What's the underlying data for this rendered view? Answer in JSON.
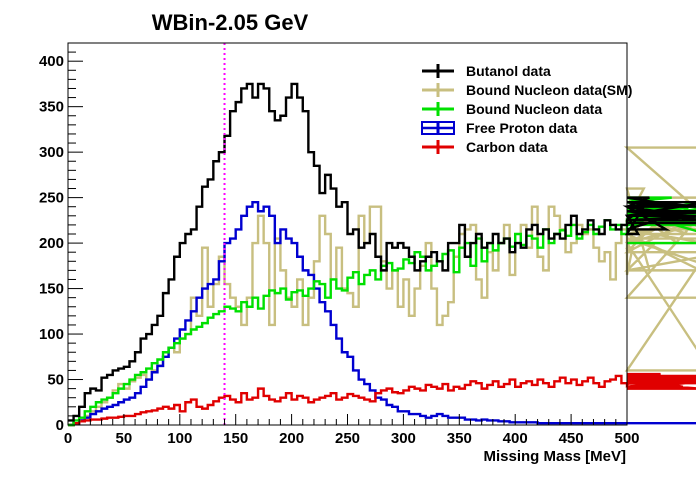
{
  "chart_data": {
    "type": "line",
    "title": "WBin-2.05 GeV",
    "xlabel": "Missing Mass [MeV]",
    "ylabel": "",
    "xlim": [
      0,
      500
    ],
    "ylim": [
      0,
      420
    ],
    "xticks": [
      0,
      50,
      100,
      150,
      200,
      250,
      300,
      350,
      400,
      450,
      500
    ],
    "yticks": [
      0,
      50,
      100,
      150,
      200,
      250,
      300,
      350,
      400
    ],
    "grid": false,
    "legend_position": "top-right",
    "bin_width": 5,
    "x_start": 0,
    "vertical_marker": {
      "x": 140,
      "color": "#ff00ff",
      "style": "dotted"
    },
    "series": [
      {
        "name": "Butanol data",
        "color": "#000000",
        "values": [
          5,
          10,
          20,
          35,
          40,
          38,
          52,
          55,
          60,
          62,
          64,
          70,
          80,
          95,
          100,
          110,
          120,
          145,
          160,
          185,
          200,
          210,
          215,
          240,
          262,
          270,
          290,
          300,
          318,
          345,
          355,
          370,
          375,
          360,
          375,
          370,
          345,
          335,
          340,
          360,
          375,
          360,
          345,
          300,
          285,
          255,
          275,
          260,
          240,
          245,
          210,
          215,
          195,
          200,
          210,
          185,
          170,
          200,
          195,
          200,
          195,
          185,
          170,
          180,
          185,
          190,
          180,
          170,
          200,
          200,
          220,
          185,
          200,
          210,
          195,
          200,
          210,
          200,
          205,
          190,
          200,
          195,
          215,
          220,
          210,
          215,
          205,
          210,
          205,
          220,
          230,
          210,
          215,
          225,
          215,
          210,
          225,
          220,
          215,
          220,
          225,
          230,
          210,
          240,
          250,
          245,
          240,
          215,
          230,
          240,
          245,
          240,
          225,
          230,
          245,
          240,
          225,
          230,
          235,
          235,
          222
        ]
      },
      {
        "name": "Bound Nucleon data(SM)",
        "color": "#c8bf80",
        "values": [
          0,
          2,
          5,
          10,
          15,
          20,
          25,
          30,
          38,
          45,
          40,
          48,
          52,
          55,
          50,
          60,
          65,
          75,
          85,
          80,
          95,
          100,
          140,
          120,
          195,
          130,
          155,
          185,
          155,
          140,
          130,
          110,
          140,
          200,
          230,
          200,
          110,
          205,
          170,
          140,
          130,
          160,
          110,
          140,
          180,
          230,
          210,
          160,
          195,
          150,
          145,
          130,
          230,
          200,
          240,
          240,
          180,
          150,
          170,
          130,
          160,
          120,
          150,
          175,
          200,
          150,
          110,
          120,
          135,
          185,
          210,
          215,
          220,
          160,
          140,
          190,
          170,
          200,
          220,
          165,
          200,
          220,
          195,
          240,
          185,
          170,
          240,
          230,
          215,
          190,
          200,
          220,
          210,
          215,
          195,
          180,
          190,
          160,
          200,
          215,
          165,
          195,
          225,
          260,
          170,
          200,
          210,
          190,
          240,
          200,
          230,
          210,
          225,
          215,
          200,
          60,
          205,
          170,
          190,
          250,
          200,
          235,
          210,
          140,
          305,
          170
        ]
      },
      {
        "name": "Bound Nucleon data",
        "color": "#00e000",
        "values": [
          0,
          5,
          8,
          15,
          20,
          25,
          28,
          30,
          35,
          40,
          45,
          50,
          55,
          58,
          62,
          68,
          72,
          80,
          85,
          90,
          95,
          100,
          105,
          108,
          112,
          118,
          122,
          125,
          130,
          128,
          125,
          135,
          130,
          140,
          128,
          142,
          148,
          145,
          150,
          138,
          146,
          148,
          142,
          150,
          158,
          155,
          140,
          160,
          150,
          148,
          162,
          168,
          155,
          165,
          170,
          160,
          175,
          178,
          170,
          172,
          182,
          178,
          190,
          185,
          170,
          175,
          180,
          188,
          192,
          168,
          195,
          200,
          175,
          205,
          180,
          200,
          192,
          200,
          205,
          196,
          210,
          198,
          208,
          205,
          195,
          215,
          200,
          210,
          214,
          208,
          220,
          205,
          212,
          220,
          210,
          218,
          225,
          215,
          220,
          210,
          225,
          220,
          230,
          222,
          228,
          240,
          235,
          245,
          250,
          232,
          240,
          238,
          230,
          245,
          225,
          240,
          232,
          220,
          228,
          235,
          200
        ]
      },
      {
        "name": "Free Proton data",
        "color": "#0000d0",
        "values": [
          0,
          2,
          5,
          8,
          12,
          15,
          18,
          20,
          22,
          25,
          28,
          30,
          35,
          42,
          50,
          58,
          65,
          75,
          85,
          95,
          105,
          115,
          125,
          140,
          150,
          155,
          160,
          180,
          200,
          205,
          215,
          230,
          240,
          245,
          235,
          240,
          230,
          200,
          215,
          205,
          200,
          185,
          170,
          165,
          150,
          135,
          125,
          110,
          95,
          80,
          75,
          60,
          50,
          45,
          38,
          30,
          28,
          22,
          20,
          15,
          15,
          12,
          12,
          10,
          8,
          10,
          12,
          10,
          8,
          8,
          8,
          6,
          6,
          5,
          6,
          5,
          5,
          4,
          4,
          3,
          3,
          3,
          3,
          3,
          2,
          2,
          2,
          2,
          2,
          2,
          2,
          2,
          2,
          2,
          2,
          2,
          2,
          2,
          2,
          2,
          2,
          2,
          2,
          2,
          2,
          2,
          2,
          2,
          2,
          2,
          2,
          2,
          2,
          2,
          2,
          2,
          2,
          2,
          2,
          2,
          2
        ]
      },
      {
        "name": "Carbon data",
        "color": "#e00000",
        "values": [
          0,
          2,
          4,
          5,
          6,
          6,
          7,
          8,
          8,
          9,
          10,
          10,
          12,
          14,
          15,
          16,
          18,
          20,
          18,
          22,
          15,
          25,
          28,
          20,
          18,
          22,
          26,
          30,
          32,
          28,
          25,
          35,
          28,
          30,
          40,
          32,
          28,
          26,
          30,
          35,
          28,
          32,
          30,
          25,
          28,
          30,
          32,
          35,
          28,
          30,
          34,
          32,
          30,
          28,
          26,
          35,
          38,
          40,
          36,
          35,
          38,
          42,
          40,
          38,
          44,
          42,
          40,
          45,
          38,
          42,
          40,
          44,
          48,
          46,
          40,
          44,
          48,
          42,
          45,
          50,
          42,
          46,
          48,
          44,
          50,
          46,
          42,
          48,
          52,
          46,
          50,
          44,
          48,
          52,
          46,
          42,
          48,
          50,
          54,
          46,
          44,
          50,
          52,
          48,
          42,
          46,
          56,
          50,
          48,
          54,
          42,
          52,
          46,
          40,
          48,
          50,
          54,
          46,
          52,
          48,
          48
        ]
      }
    ]
  }
}
